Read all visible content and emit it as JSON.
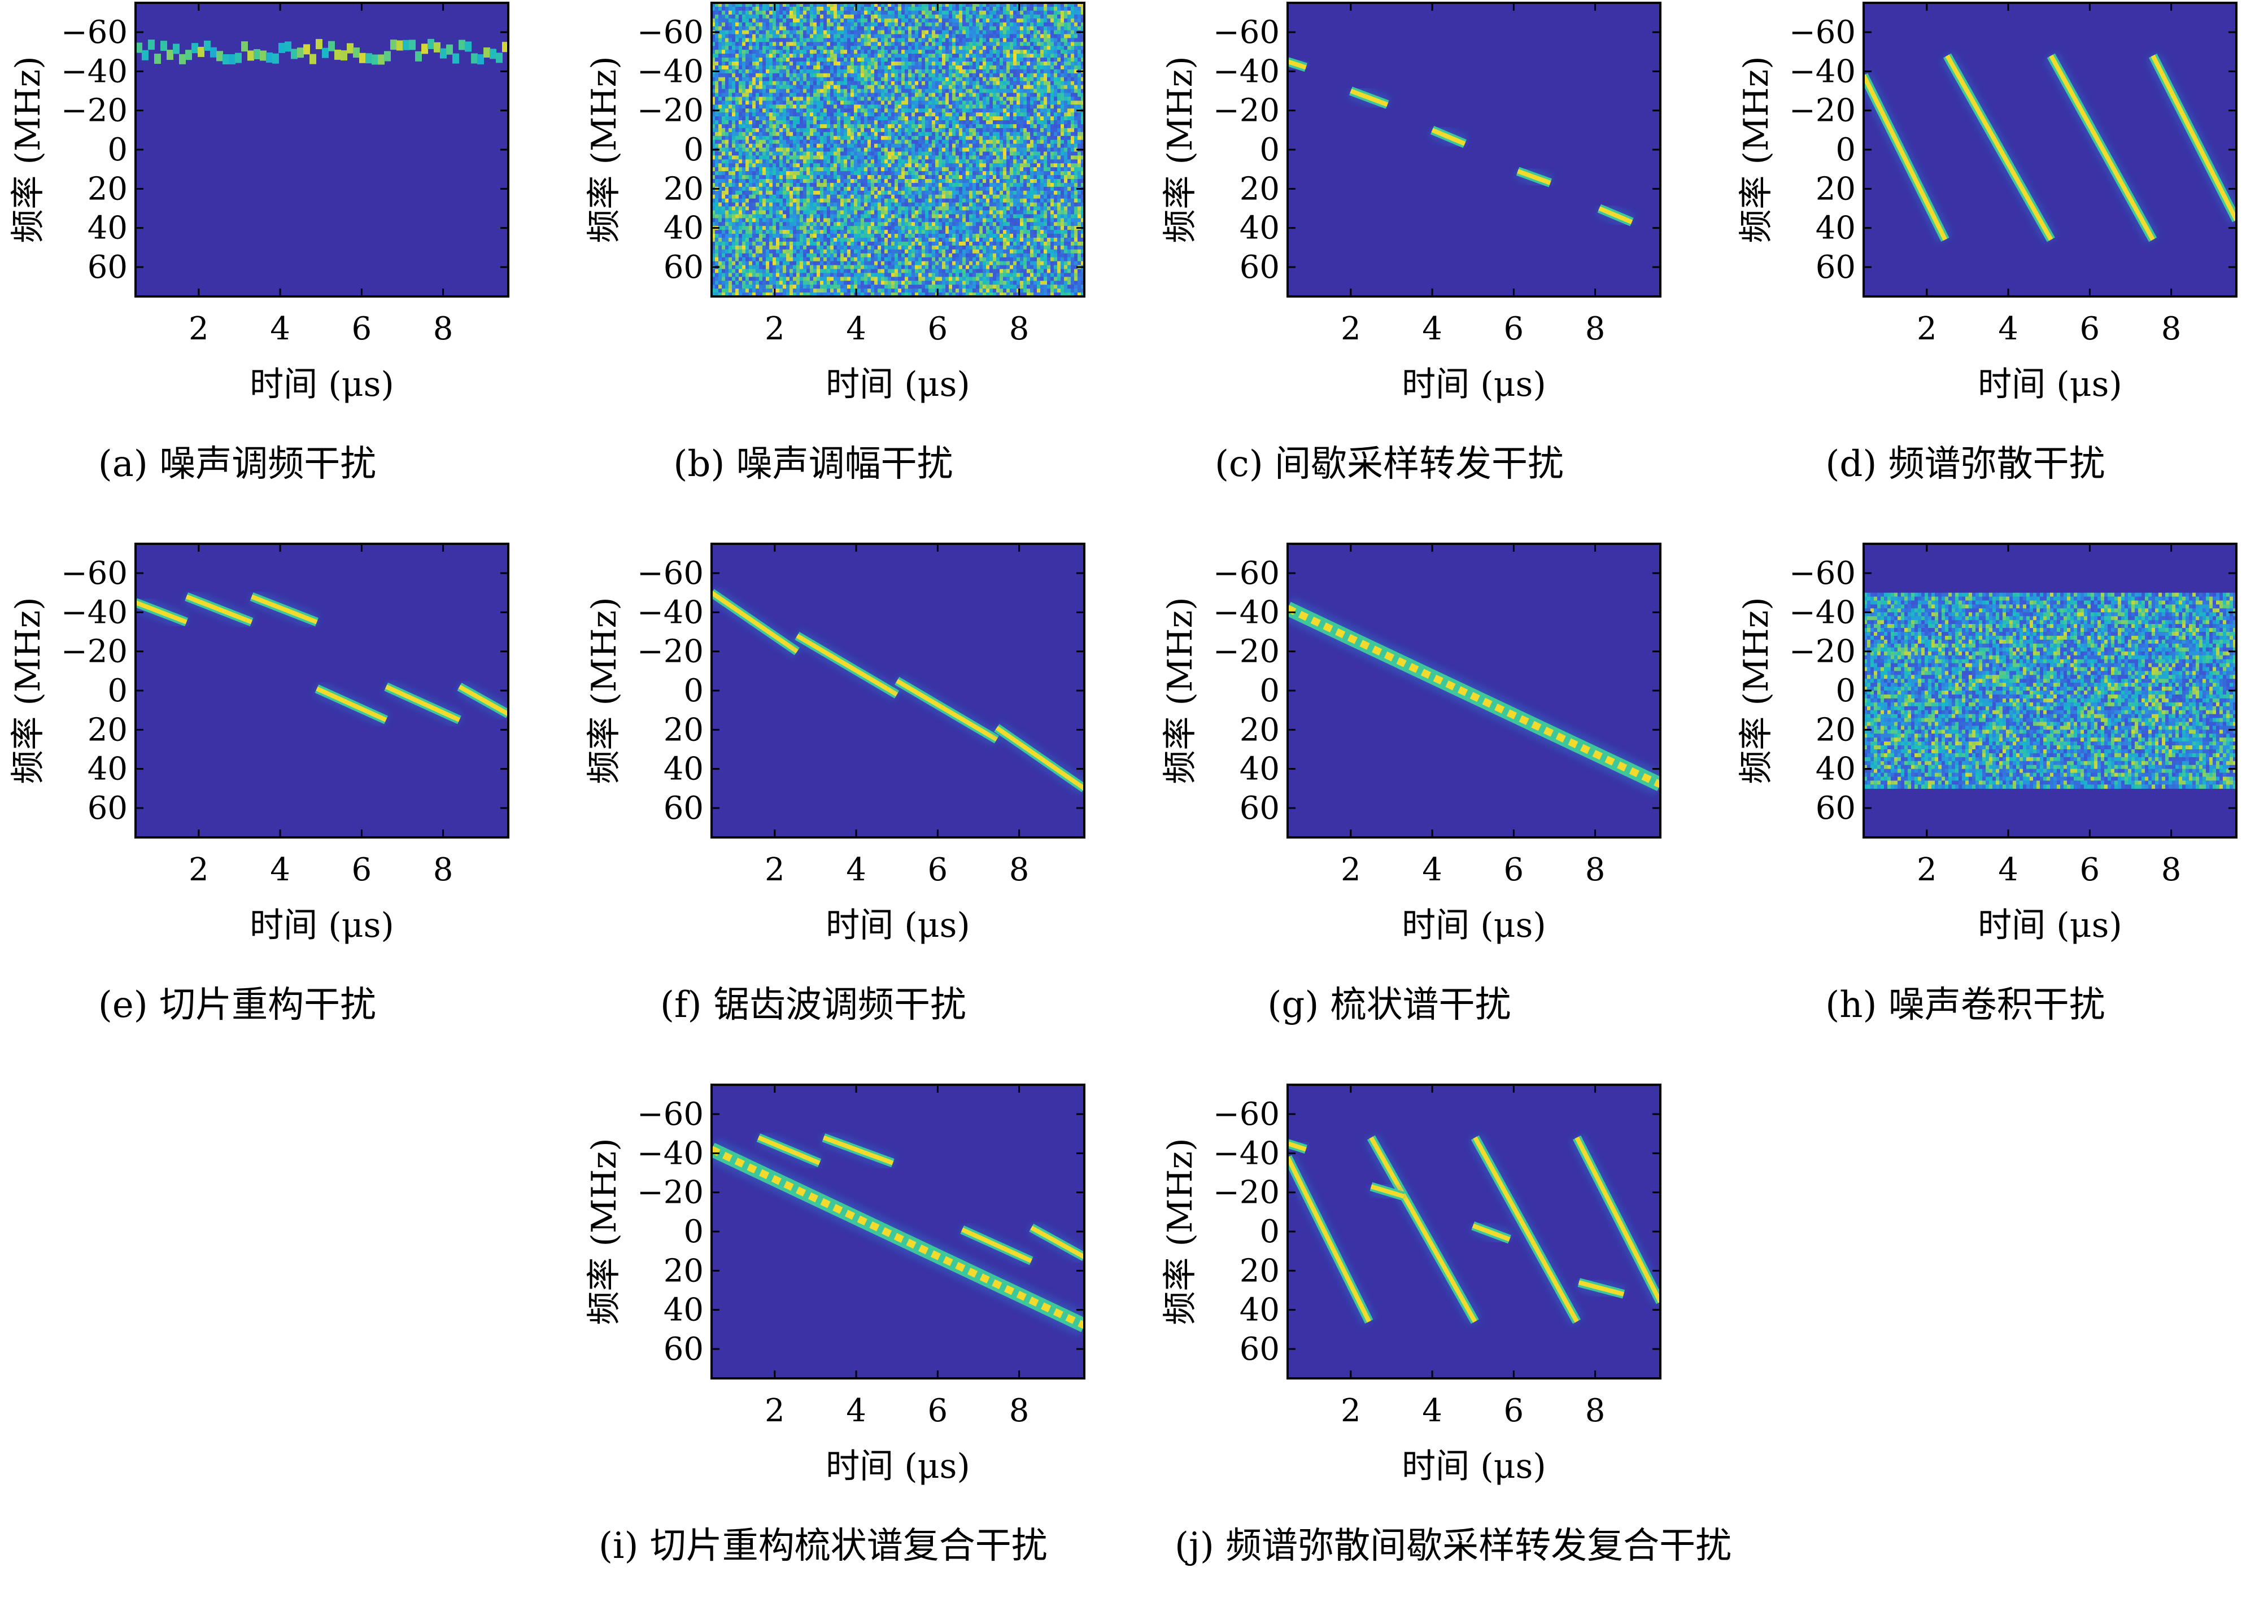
{
  "colors": {
    "background": "#3b32a6",
    "colormap": [
      "#3b32a6",
      "#3a5bd6",
      "#2c8fe0",
      "#19b6c8",
      "#3ec79a",
      "#a9d24a",
      "#f4da2c"
    ]
  },
  "chart_data": [
    {
      "type": "heatmap",
      "id": "a",
      "caption": "(a) 噪声调频干扰",
      "xlabel": "时间 (μs)",
      "ylabel": "频率 (MHz)",
      "xlim": [
        0.45,
        9.6
      ],
      "ylim": [
        -75,
        75
      ],
      "y_inverted": true,
      "xticks": [
        2,
        4,
        6,
        8
      ],
      "xtick_labels": [
        "2",
        "4",
        "6",
        "8"
      ],
      "yticks": [
        -60,
        -40,
        -20,
        0,
        20,
        40,
        60
      ],
      "ytick_labels": [
        "−60",
        "−40",
        "−20",
        "0",
        "20",
        "40",
        "60"
      ],
      "pattern": "noise_fm",
      "center_mhz": -50,
      "deviation_mhz": 4
    },
    {
      "type": "heatmap",
      "id": "b",
      "caption": "(b) 噪声调幅干扰",
      "xlabel": "时间 (μs)",
      "ylabel": "频率 (MHz)",
      "xlim": [
        0.45,
        9.6
      ],
      "ylim": [
        -75,
        75
      ],
      "y_inverted": true,
      "xticks": [
        2,
        4,
        6,
        8
      ],
      "xtick_labels": [
        "2",
        "4",
        "6",
        "8"
      ],
      "yticks": [
        -60,
        -40,
        -20,
        0,
        20,
        40,
        60
      ],
      "ytick_labels": [
        "−60",
        "−40",
        "−20",
        "0",
        "20",
        "40",
        "60"
      ],
      "pattern": "noise_full",
      "band_mhz": [
        -75,
        75
      ]
    },
    {
      "type": "heatmap",
      "id": "c",
      "caption": "(c) 间歇采样转发干扰",
      "xlabel": "时间 (μs)",
      "ylabel": "频率 (MHz)",
      "xlim": [
        0.45,
        9.6
      ],
      "ylim": [
        -75,
        75
      ],
      "y_inverted": true,
      "xticks": [
        2,
        4,
        6,
        8
      ],
      "xtick_labels": [
        "2",
        "4",
        "6",
        "8"
      ],
      "yticks": [
        -60,
        -40,
        -20,
        0,
        20,
        40,
        60
      ],
      "ytick_labels": [
        "−60",
        "−40",
        "−20",
        "0",
        "20",
        "40",
        "60"
      ],
      "pattern": "segments",
      "segments": [
        {
          "t0": 0.45,
          "f0": -45,
          "t1": 0.9,
          "f1": -42
        },
        {
          "t0": 2.0,
          "f0": -30,
          "t1": 2.9,
          "f1": -23
        },
        {
          "t0": 4.0,
          "f0": -10,
          "t1": 4.8,
          "f1": -3
        },
        {
          "t0": 6.1,
          "f0": 11,
          "t1": 6.9,
          "f1": 17
        },
        {
          "t0": 8.1,
          "f0": 30,
          "t1": 8.9,
          "f1": 37
        }
      ]
    },
    {
      "type": "heatmap",
      "id": "d",
      "caption": "(d) 频谱弥散干扰",
      "xlabel": "时间 (μs)",
      "ylabel": "频率 (MHz)",
      "xlim": [
        0.45,
        9.6
      ],
      "ylim": [
        -75,
        75
      ],
      "y_inverted": true,
      "xticks": [
        2,
        4,
        6,
        8
      ],
      "xtick_labels": [
        "2",
        "4",
        "6",
        "8"
      ],
      "yticks": [
        -60,
        -40,
        -20,
        0,
        20,
        40,
        60
      ],
      "ytick_labels": [
        "−60",
        "−40",
        "−20",
        "0",
        "20",
        "40",
        "60"
      ],
      "pattern": "segments",
      "segments": [
        {
          "t0": 0.45,
          "f0": -38,
          "t1": 2.45,
          "f1": 46
        },
        {
          "t0": 2.5,
          "f0": -48,
          "t1": 5.05,
          "f1": 46
        },
        {
          "t0": 5.05,
          "f0": -48,
          "t1": 7.55,
          "f1": 46
        },
        {
          "t0": 7.55,
          "f0": -48,
          "t1": 9.6,
          "f1": 36
        }
      ]
    },
    {
      "type": "heatmap",
      "id": "e",
      "caption": "(e) 切片重构干扰",
      "xlabel": "时间 (μs)",
      "ylabel": "频率 (MHz)",
      "xlim": [
        0.45,
        9.6
      ],
      "ylim": [
        -75,
        75
      ],
      "y_inverted": true,
      "xticks": [
        2,
        4,
        6,
        8
      ],
      "xtick_labels": [
        "2",
        "4",
        "6",
        "8"
      ],
      "yticks": [
        -60,
        -40,
        -20,
        0,
        20,
        40,
        60
      ],
      "ytick_labels": [
        "−60",
        "−40",
        "−20",
        "0",
        "20",
        "40",
        "60"
      ],
      "pattern": "segments",
      "segments": [
        {
          "t0": 0.45,
          "f0": -45,
          "t1": 1.7,
          "f1": -35
        },
        {
          "t0": 1.7,
          "f0": -48,
          "t1": 3.3,
          "f1": -35
        },
        {
          "t0": 3.3,
          "f0": -48,
          "t1": 4.9,
          "f1": -35
        },
        {
          "t0": 4.9,
          "f0": -1,
          "t1": 6.6,
          "f1": 15
        },
        {
          "t0": 6.6,
          "f0": -2,
          "t1": 8.4,
          "f1": 15
        },
        {
          "t0": 8.4,
          "f0": -2,
          "t1": 9.6,
          "f1": 12
        }
      ]
    },
    {
      "type": "heatmap",
      "id": "f",
      "caption": "(f) 锯齿波调频干扰",
      "xlabel": "时间 (μs)",
      "ylabel": "频率 (MHz)",
      "xlim": [
        0.45,
        9.6
      ],
      "ylim": [
        -75,
        75
      ],
      "y_inverted": true,
      "xticks": [
        2,
        4,
        6,
        8
      ],
      "xtick_labels": [
        "2",
        "4",
        "6",
        "8"
      ],
      "yticks": [
        -60,
        -40,
        -20,
        0,
        20,
        40,
        60
      ],
      "ytick_labels": [
        "−60",
        "−40",
        "−20",
        "0",
        "20",
        "40",
        "60"
      ],
      "pattern": "segments",
      "segments": [
        {
          "t0": 0.45,
          "f0": -50,
          "t1": 2.55,
          "f1": -20
        },
        {
          "t0": 2.55,
          "f0": -28,
          "t1": 5.0,
          "f1": 2
        },
        {
          "t0": 5.0,
          "f0": -5,
          "t1": 7.45,
          "f1": 25
        },
        {
          "t0": 7.45,
          "f0": 19,
          "t1": 9.6,
          "f1": 50
        }
      ]
    },
    {
      "type": "heatmap",
      "id": "g",
      "caption": "(g) 梳状谱干扰",
      "xlabel": "时间 (μs)",
      "ylabel": "频率 (MHz)",
      "xlim": [
        0.45,
        9.6
      ],
      "ylim": [
        -75,
        75
      ],
      "y_inverted": true,
      "xticks": [
        2,
        4,
        6,
        8
      ],
      "xtick_labels": [
        "2",
        "4",
        "6",
        "8"
      ],
      "yticks": [
        -60,
        -40,
        -20,
        0,
        20,
        40,
        60
      ],
      "ytick_labels": [
        "−60",
        "−40",
        "−20",
        "0",
        "20",
        "40",
        "60"
      ],
      "pattern": "segments",
      "segments": [
        {
          "t0": 0.45,
          "f0": -42,
          "t1": 9.6,
          "f1": 48,
          "width": 8
        }
      ]
    },
    {
      "type": "heatmap",
      "id": "h",
      "caption": "(h) 噪声卷积干扰",
      "xlabel": "时间 (μs)",
      "ylabel": "频率 (MHz)",
      "xlim": [
        0.45,
        9.6
      ],
      "ylim": [
        -75,
        75
      ],
      "y_inverted": true,
      "xticks": [
        2,
        4,
        6,
        8
      ],
      "xtick_labels": [
        "2",
        "4",
        "6",
        "8"
      ],
      "yticks": [
        -60,
        -40,
        -20,
        0,
        20,
        40,
        60
      ],
      "ytick_labels": [
        "−60",
        "−40",
        "−20",
        "0",
        "20",
        "40",
        "60"
      ],
      "pattern": "noise_band",
      "band_mhz": [
        -50,
        50
      ]
    },
    {
      "type": "heatmap",
      "id": "i",
      "caption": "(i) 切片重构梳状谱复合干扰",
      "xlabel": "时间 (μs)",
      "ylabel": "频率 (MHz)",
      "xlim": [
        0.45,
        9.6
      ],
      "ylim": [
        -75,
        75
      ],
      "y_inverted": true,
      "xticks": [
        2,
        4,
        6,
        8
      ],
      "xtick_labels": [
        "2",
        "4",
        "6",
        "8"
      ],
      "yticks": [
        -60,
        -40,
        -20,
        0,
        20,
        40,
        60
      ],
      "ytick_labels": [
        "−60",
        "−40",
        "−20",
        "0",
        "20",
        "40",
        "60"
      ],
      "pattern": "segments",
      "segments": [
        {
          "t0": 0.45,
          "f0": -42,
          "t1": 9.6,
          "f1": 48,
          "width": 8
        },
        {
          "t0": 1.6,
          "f0": -48,
          "t1": 3.1,
          "f1": -35
        },
        {
          "t0": 3.2,
          "f0": -48,
          "t1": 4.9,
          "f1": -35
        },
        {
          "t0": 6.6,
          "f0": -1,
          "t1": 8.3,
          "f1": 15
        },
        {
          "t0": 8.3,
          "f0": -2,
          "t1": 9.6,
          "f1": 13
        }
      ]
    },
    {
      "type": "heatmap",
      "id": "j",
      "caption": "(j) 频谱弥散间歇采样转发复合干扰",
      "xlabel": "时间 (μs)",
      "ylabel": "频率 (MHz)",
      "xlim": [
        0.45,
        9.6
      ],
      "ylim": [
        -75,
        75
      ],
      "y_inverted": true,
      "xticks": [
        2,
        4,
        6,
        8
      ],
      "xtick_labels": [
        "2",
        "4",
        "6",
        "8"
      ],
      "yticks": [
        -60,
        -40,
        -20,
        0,
        20,
        40,
        60
      ],
      "ytick_labels": [
        "−60",
        "−40",
        "−20",
        "0",
        "20",
        "40",
        "60"
      ],
      "pattern": "segments",
      "segments": [
        {
          "t0": 0.45,
          "f0": -38,
          "t1": 2.45,
          "f1": 46
        },
        {
          "t0": 2.5,
          "f0": -48,
          "t1": 5.05,
          "f1": 46
        },
        {
          "t0": 5.05,
          "f0": -48,
          "t1": 7.55,
          "f1": 46
        },
        {
          "t0": 7.55,
          "f0": -48,
          "t1": 9.6,
          "f1": 36
        },
        {
          "t0": 0.45,
          "f0": -45,
          "t1": 0.9,
          "f1": -42
        },
        {
          "t0": 2.5,
          "f0": -23,
          "t1": 3.3,
          "f1": -18
        },
        {
          "t0": 5.0,
          "f0": -3,
          "t1": 5.9,
          "f1": 4
        },
        {
          "t0": 7.6,
          "f0": 26,
          "t1": 8.7,
          "f1": 32
        }
      ]
    }
  ]
}
